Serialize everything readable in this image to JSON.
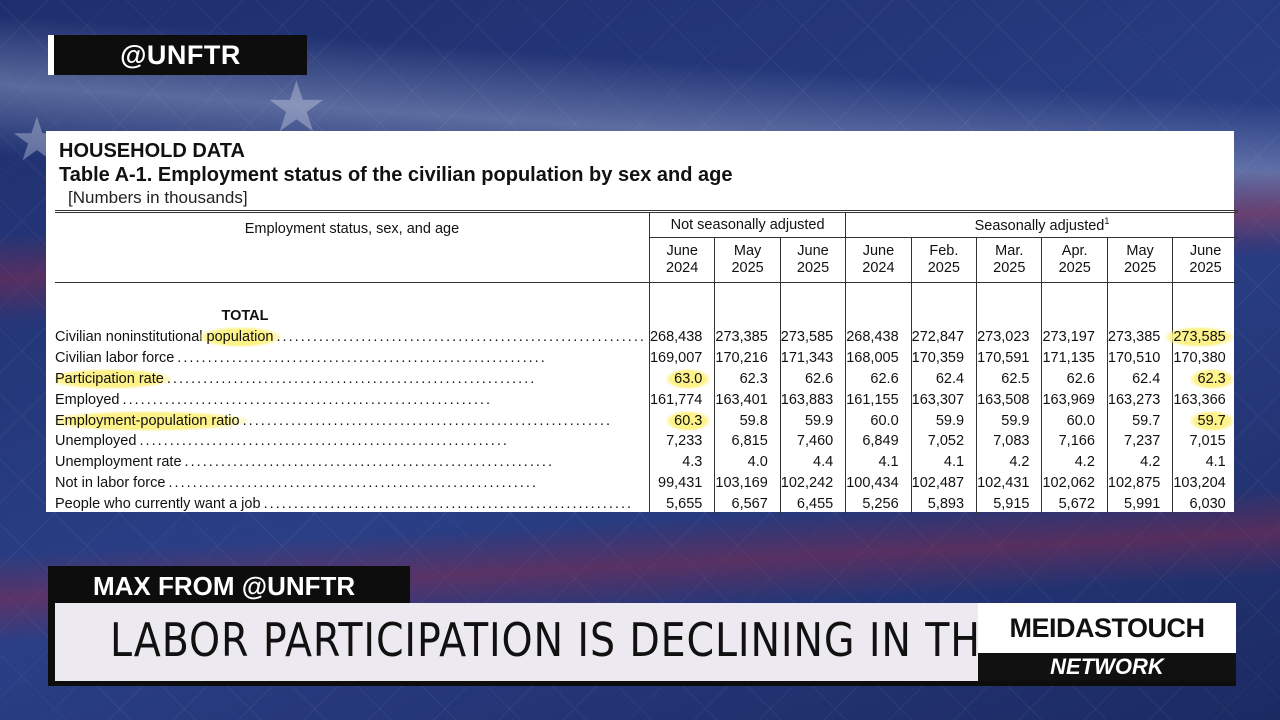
{
  "handle": "@UNFTR",
  "document": {
    "title": "HOUSEHOLD DATA",
    "table_title": "Table A-1. Employment status of the civilian population by sex and age",
    "subtitle": "[Numbers in thousands]",
    "stub_header": "Employment status, sex, and age",
    "group_nsa": "Not seasonally adjusted",
    "group_sa": "Seasonally adjusted",
    "group_sa_note": "1",
    "columns": [
      {
        "month": "June",
        "year": "2024"
      },
      {
        "month": "May",
        "year": "2025"
      },
      {
        "month": "June",
        "year": "2025"
      },
      {
        "month": "June",
        "year": "2024"
      },
      {
        "month": "Feb.",
        "year": "2025"
      },
      {
        "month": "Mar.",
        "year": "2025"
      },
      {
        "month": "Apr.",
        "year": "2025"
      },
      {
        "month": "May",
        "year": "2025"
      },
      {
        "month": "June",
        "year": "2025"
      }
    ],
    "section": "TOTAL",
    "rows": [
      {
        "label": "Civilian noninstitutional",
        "label_hl": "population",
        "values": [
          "268,438",
          "273,385",
          "273,585",
          "268,438",
          "272,847",
          "273,023",
          "273,197",
          "273,385",
          "273,585"
        ]
      },
      {
        "label": "Civilian labor force",
        "values": [
          "169,007",
          "170,216",
          "171,343",
          "168,005",
          "170,359",
          "170,591",
          "171,135",
          "170,510",
          "170,380"
        ]
      },
      {
        "label": "Participation rate",
        "values": [
          "63.0",
          "62.3",
          "62.6",
          "62.6",
          "62.4",
          "62.5",
          "62.6",
          "62.4",
          "62.3"
        ]
      },
      {
        "label": "Employed",
        "values": [
          "161,774",
          "163,401",
          "163,883",
          "161,155",
          "163,307",
          "163,508",
          "163,969",
          "163,273",
          "163,366"
        ]
      },
      {
        "label": "Employment-population ratio",
        "values": [
          "60.3",
          "59.8",
          "59.9",
          "60.0",
          "59.9",
          "59.9",
          "60.0",
          "59.7",
          "59.7"
        ]
      },
      {
        "label": "Unemployed",
        "values": [
          "7,233",
          "6,815",
          "7,460",
          "6,849",
          "7,052",
          "7,083",
          "7,166",
          "7,237",
          "7,015"
        ]
      },
      {
        "label": "Unemployment rate",
        "values": [
          "4.3",
          "4.0",
          "4.4",
          "4.1",
          "4.1",
          "4.2",
          "4.2",
          "4.2",
          "4.1"
        ]
      },
      {
        "label": "Not in labor force",
        "values": [
          "99,431",
          "103,169",
          "102,242",
          "100,434",
          "102,487",
          "102,431",
          "102,062",
          "102,875",
          "103,204"
        ]
      },
      {
        "label": "People who currently want a job",
        "values": [
          "5,655",
          "6,567",
          "6,455",
          "5,256",
          "5,893",
          "5,915",
          "5,672",
          "5,991",
          "6,030"
        ]
      }
    ]
  },
  "lower_third": {
    "name_tag": "MAX FROM @UNFTR",
    "headline": "LABOR PARTICIPATION IS DECLINING IN THE U.S.",
    "brand_name": "MEIDASTOUCH",
    "brand_network": "NETWORK"
  }
}
